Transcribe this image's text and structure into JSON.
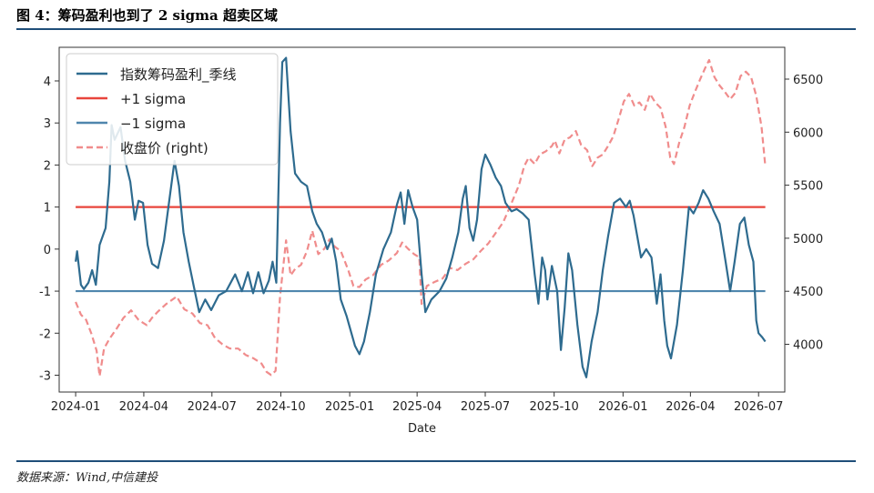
{
  "header": {
    "title": "图 4：筹码盈利也到了 2 sigma 超卖区域"
  },
  "footer": {
    "source": "数据来源：Wind,中信建投"
  },
  "colors": {
    "profit": "#2e6b8f",
    "plus_sigma": "#e8453c",
    "minus_sigma": "#4f86ad",
    "close": "#f08c8c",
    "rule": "#1f4e79"
  },
  "chart_data": {
    "type": "line",
    "xlabel": "Date",
    "x_ticks": [
      "2024-01",
      "2024-04",
      "2024-07",
      "2024-10",
      "2025-01",
      "2025-04",
      "2025-07",
      "2025-10",
      "2026-01",
      "2026-04",
      "2026-07"
    ],
    "y_left_ticks": [
      4,
      3,
      2,
      1,
      0,
      -1,
      -2,
      -3
    ],
    "y_left_range": [
      -3.4,
      4.8
    ],
    "y_right_ticks": [
      6500,
      6000,
      5500,
      5000,
      4500,
      4000
    ],
    "y_right_range": [
      3550,
      6800
    ],
    "legend": [
      "指数筹码盈利_季线",
      "+1 sigma",
      "−1 sigma",
      "收盘价 (right)"
    ],
    "legend_position": "top-left",
    "sigma_levels": {
      "plus": 1,
      "minus": -1
    },
    "series": [
      {
        "name": "指数筹码盈利_季线",
        "axis": "left",
        "points": [
          [
            "2024-01-01",
            -0.3
          ],
          [
            "2024-01-03",
            -0.05
          ],
          [
            "2024-01-08",
            -0.85
          ],
          [
            "2024-01-12",
            -0.95
          ],
          [
            "2024-01-18",
            -0.8
          ],
          [
            "2024-01-23",
            -0.5
          ],
          [
            "2024-01-28",
            -0.85
          ],
          [
            "2024-02-02",
            0.1
          ],
          [
            "2024-02-10",
            0.5
          ],
          [
            "2024-02-15",
            1.6
          ],
          [
            "2024-02-18",
            2.95
          ],
          [
            "2024-02-22",
            2.6
          ],
          [
            "2024-03-01",
            2.9
          ],
          [
            "2024-03-07",
            2.1
          ],
          [
            "2024-03-14",
            1.6
          ],
          [
            "2024-03-20",
            0.7
          ],
          [
            "2024-03-25",
            1.15
          ],
          [
            "2024-03-31",
            1.1
          ],
          [
            "2024-04-06",
            0.1
          ],
          [
            "2024-04-12",
            -0.35
          ],
          [
            "2024-04-20",
            -0.45
          ],
          [
            "2024-04-28",
            0.2
          ],
          [
            "2024-05-05",
            1.15
          ],
          [
            "2024-05-12",
            2.1
          ],
          [
            "2024-05-18",
            1.5
          ],
          [
            "2024-05-24",
            0.4
          ],
          [
            "2024-05-31",
            -0.3
          ],
          [
            "2024-06-07",
            -0.9
          ],
          [
            "2024-06-14",
            -1.5
          ],
          [
            "2024-06-22",
            -1.2
          ],
          [
            "2024-06-30",
            -1.45
          ],
          [
            "2024-07-10",
            -1.1
          ],
          [
            "2024-07-20",
            -1.0
          ],
          [
            "2024-08-01",
            -0.6
          ],
          [
            "2024-08-10",
            -1.0
          ],
          [
            "2024-08-18",
            -0.55
          ],
          [
            "2024-08-25",
            -1.05
          ],
          [
            "2024-09-01",
            -0.55
          ],
          [
            "2024-09-08",
            -1.05
          ],
          [
            "2024-09-15",
            -0.75
          ],
          [
            "2024-09-20",
            -0.3
          ],
          [
            "2024-09-25",
            -0.8
          ],
          [
            "2024-09-30",
            3.0
          ],
          [
            "2024-10-03",
            4.45
          ],
          [
            "2024-10-08",
            4.55
          ],
          [
            "2024-10-14",
            2.8
          ],
          [
            "2024-10-20",
            1.8
          ],
          [
            "2024-10-28",
            1.6
          ],
          [
            "2024-11-05",
            1.5
          ],
          [
            "2024-11-12",
            0.9
          ],
          [
            "2024-11-18",
            0.6
          ],
          [
            "2024-11-25",
            0.4
          ],
          [
            "2024-12-02",
            0.0
          ],
          [
            "2024-12-08",
            0.25
          ],
          [
            "2024-12-14",
            -0.3
          ],
          [
            "2024-12-20",
            -1.2
          ],
          [
            "2024-12-28",
            -1.6
          ],
          [
            "2025-01-08",
            -2.3
          ],
          [
            "2025-01-14",
            -2.5
          ],
          [
            "2025-01-20",
            -2.2
          ],
          [
            "2025-01-28",
            -1.5
          ],
          [
            "2025-02-05",
            -0.6
          ],
          [
            "2025-02-15",
            0.0
          ],
          [
            "2025-02-25",
            0.4
          ],
          [
            "2025-03-05",
            1.05
          ],
          [
            "2025-03-10",
            1.35
          ],
          [
            "2025-03-15",
            0.6
          ],
          [
            "2025-03-20",
            1.4
          ],
          [
            "2025-03-26",
            1.0
          ],
          [
            "2025-04-01",
            0.7
          ],
          [
            "2025-04-07",
            -0.6
          ],
          [
            "2025-04-12",
            -1.5
          ],
          [
            "2025-04-20",
            -1.2
          ],
          [
            "2025-05-01",
            -1.0
          ],
          [
            "2025-05-10",
            -0.7
          ],
          [
            "2025-05-18",
            -0.2
          ],
          [
            "2025-05-26",
            0.4
          ],
          [
            "2025-06-01",
            1.2
          ],
          [
            "2025-06-05",
            1.5
          ],
          [
            "2025-06-10",
            0.5
          ],
          [
            "2025-06-15",
            0.2
          ],
          [
            "2025-06-20",
            0.7
          ],
          [
            "2025-06-26",
            1.9
          ],
          [
            "2025-07-01",
            2.25
          ],
          [
            "2025-07-08",
            2.0
          ],
          [
            "2025-07-15",
            1.7
          ],
          [
            "2025-07-22",
            1.5
          ],
          [
            "2025-07-28",
            1.1
          ],
          [
            "2025-08-05",
            0.9
          ],
          [
            "2025-08-12",
            0.95
          ],
          [
            "2025-08-20",
            0.85
          ],
          [
            "2025-08-28",
            0.7
          ],
          [
            "2025-09-05",
            -0.6
          ],
          [
            "2025-09-10",
            -1.3
          ],
          [
            "2025-09-15",
            -0.2
          ],
          [
            "2025-09-19",
            -0.5
          ],
          [
            "2025-09-22",
            -1.2
          ],
          [
            "2025-09-28",
            -0.4
          ],
          [
            "2025-10-05",
            -1.0
          ],
          [
            "2025-10-10",
            -2.4
          ],
          [
            "2025-10-15",
            -1.4
          ],
          [
            "2025-10-20",
            -0.1
          ],
          [
            "2025-10-25",
            -0.5
          ],
          [
            "2025-11-01",
            -1.8
          ],
          [
            "2025-11-08",
            -2.8
          ],
          [
            "2025-11-13",
            -3.05
          ],
          [
            "2025-11-20",
            -2.2
          ],
          [
            "2025-11-28",
            -1.5
          ],
          [
            "2025-12-05",
            -0.5
          ],
          [
            "2025-12-12",
            0.3
          ],
          [
            "2025-12-20",
            1.1
          ],
          [
            "2025-12-28",
            1.2
          ],
          [
            "2026-01-05",
            1.0
          ],
          [
            "2026-01-10",
            1.15
          ],
          [
            "2026-01-15",
            0.8
          ],
          [
            "2026-01-20",
            0.3
          ],
          [
            "2026-01-25",
            -0.2
          ],
          [
            "2026-02-01",
            0.0
          ],
          [
            "2026-02-08",
            -0.2
          ],
          [
            "2026-02-15",
            -1.3
          ],
          [
            "2026-02-20",
            -0.6
          ],
          [
            "2026-02-25",
            -1.7
          ],
          [
            "2026-03-01",
            -2.3
          ],
          [
            "2026-03-06",
            -2.6
          ],
          [
            "2026-03-14",
            -1.8
          ],
          [
            "2026-03-22",
            -0.5
          ],
          [
            "2026-03-30",
            1.0
          ],
          [
            "2026-04-05",
            0.85
          ],
          [
            "2026-04-12",
            1.1
          ],
          [
            "2026-04-18",
            1.4
          ],
          [
            "2026-04-25",
            1.2
          ],
          [
            "2026-05-02",
            0.9
          ],
          [
            "2026-05-10",
            0.6
          ],
          [
            "2026-05-18",
            -0.3
          ],
          [
            "2026-05-24",
            -1.0
          ],
          [
            "2026-05-30",
            -0.3
          ],
          [
            "2026-06-06",
            0.6
          ],
          [
            "2026-06-12",
            0.75
          ],
          [
            "2026-06-18",
            0.1
          ],
          [
            "2026-06-24",
            -0.3
          ],
          [
            "2026-06-28",
            -1.7
          ],
          [
            "2026-07-01",
            -2.0
          ],
          [
            "2026-07-06",
            -2.1
          ],
          [
            "2026-07-10",
            -2.2
          ]
        ]
      },
      {
        "name": "收盘价 (right)",
        "axis": "right",
        "points": [
          [
            "2024-01-01",
            4400
          ],
          [
            "2024-01-08",
            4280
          ],
          [
            "2024-01-15",
            4230
          ],
          [
            "2024-01-22",
            4100
          ],
          [
            "2024-01-29",
            3940
          ],
          [
            "2024-02-02",
            3700
          ],
          [
            "2024-02-08",
            3960
          ],
          [
            "2024-02-15",
            4050
          ],
          [
            "2024-02-25",
            4150
          ],
          [
            "2024-03-05",
            4250
          ],
          [
            "2024-03-15",
            4320
          ],
          [
            "2024-03-25",
            4230
          ],
          [
            "2024-04-05",
            4180
          ],
          [
            "2024-04-12",
            4250
          ],
          [
            "2024-04-20",
            4310
          ],
          [
            "2024-05-01",
            4380
          ],
          [
            "2024-05-15",
            4450
          ],
          [
            "2024-05-25",
            4330
          ],
          [
            "2024-06-05",
            4290
          ],
          [
            "2024-06-15",
            4200
          ],
          [
            "2024-06-25",
            4180
          ],
          [
            "2024-07-05",
            4060
          ],
          [
            "2024-07-15",
            4000
          ],
          [
            "2024-07-25",
            3960
          ],
          [
            "2024-08-05",
            3960
          ],
          [
            "2024-08-15",
            3900
          ],
          [
            "2024-08-25",
            3870
          ],
          [
            "2024-09-05",
            3820
          ],
          [
            "2024-09-12",
            3740
          ],
          [
            "2024-09-18",
            3710
          ],
          [
            "2024-09-24",
            3750
          ],
          [
            "2024-09-30",
            4450
          ],
          [
            "2024-10-08",
            4980
          ],
          [
            "2024-10-14",
            4650
          ],
          [
            "2024-10-20",
            4710
          ],
          [
            "2024-10-28",
            4750
          ],
          [
            "2024-11-05",
            4880
          ],
          [
            "2024-11-12",
            5070
          ],
          [
            "2024-11-20",
            4850
          ],
          [
            "2024-11-28",
            4900
          ],
          [
            "2024-12-05",
            4990
          ],
          [
            "2024-12-12",
            4920
          ],
          [
            "2024-12-20",
            4880
          ],
          [
            "2024-12-30",
            4700
          ],
          [
            "2025-01-06",
            4550
          ],
          [
            "2025-01-14",
            4540
          ],
          [
            "2025-01-22",
            4610
          ],
          [
            "2025-02-01",
            4650
          ],
          [
            "2025-02-12",
            4750
          ],
          [
            "2025-02-22",
            4790
          ],
          [
            "2025-03-05",
            4860
          ],
          [
            "2025-03-12",
            4960
          ],
          [
            "2025-03-20",
            4900
          ],
          [
            "2025-03-28",
            4850
          ],
          [
            "2025-04-04",
            4820
          ],
          [
            "2025-04-07",
            4380
          ],
          [
            "2025-04-14",
            4550
          ],
          [
            "2025-04-25",
            4590
          ],
          [
            "2025-05-05",
            4620
          ],
          [
            "2025-05-15",
            4720
          ],
          [
            "2025-05-25",
            4700
          ],
          [
            "2025-06-05",
            4760
          ],
          [
            "2025-06-15",
            4800
          ],
          [
            "2025-06-25",
            4880
          ],
          [
            "2025-07-05",
            4950
          ],
          [
            "2025-07-15",
            5050
          ],
          [
            "2025-07-25",
            5150
          ],
          [
            "2025-08-05",
            5330
          ],
          [
            "2025-08-15",
            5500
          ],
          [
            "2025-08-22",
            5680
          ],
          [
            "2025-08-28",
            5760
          ],
          [
            "2025-09-05",
            5700
          ],
          [
            "2025-09-12",
            5790
          ],
          [
            "2025-09-20",
            5820
          ],
          [
            "2025-09-28",
            5870
          ],
          [
            "2025-10-02",
            5920
          ],
          [
            "2025-10-08",
            5800
          ],
          [
            "2025-10-15",
            5930
          ],
          [
            "2025-10-22",
            5950
          ],
          [
            "2025-10-30",
            6010
          ],
          [
            "2025-11-06",
            5880
          ],
          [
            "2025-11-14",
            5830
          ],
          [
            "2025-11-21",
            5680
          ],
          [
            "2025-11-28",
            5760
          ],
          [
            "2025-12-05",
            5790
          ],
          [
            "2025-12-12",
            5870
          ],
          [
            "2025-12-19",
            5960
          ],
          [
            "2025-12-26",
            6120
          ],
          [
            "2026-01-02",
            6290
          ],
          [
            "2026-01-09",
            6360
          ],
          [
            "2026-01-16",
            6250
          ],
          [
            "2026-01-23",
            6280
          ],
          [
            "2026-01-30",
            6210
          ],
          [
            "2026-02-06",
            6360
          ],
          [
            "2026-02-13",
            6280
          ],
          [
            "2026-02-20",
            6230
          ],
          [
            "2026-02-27",
            6050
          ],
          [
            "2026-03-05",
            5760
          ],
          [
            "2026-03-10",
            5700
          ],
          [
            "2026-03-17",
            5900
          ],
          [
            "2026-03-24",
            6050
          ],
          [
            "2026-03-31",
            6250
          ],
          [
            "2026-04-07",
            6380
          ],
          [
            "2026-04-14",
            6500
          ],
          [
            "2026-04-21",
            6610
          ],
          [
            "2026-04-26",
            6680
          ],
          [
            "2026-05-03",
            6520
          ],
          [
            "2026-05-10",
            6440
          ],
          [
            "2026-05-17",
            6380
          ],
          [
            "2026-05-24",
            6310
          ],
          [
            "2026-05-31",
            6370
          ],
          [
            "2026-06-07",
            6530
          ],
          [
            "2026-06-14",
            6570
          ],
          [
            "2026-06-21",
            6520
          ],
          [
            "2026-06-28",
            6340
          ],
          [
            "2026-07-05",
            6050
          ],
          [
            "2026-07-10",
            5680
          ]
        ]
      }
    ]
  }
}
